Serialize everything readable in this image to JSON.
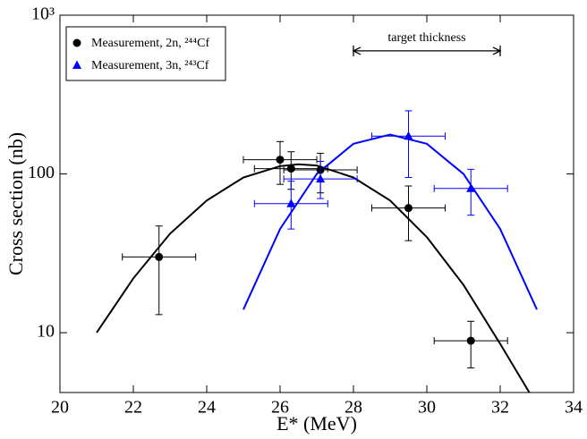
{
  "chart_data": {
    "type": "scatter",
    "xlabel": "E* (MeV)",
    "ylabel": "Cross section (nb)",
    "log_y": true,
    "xlim": [
      20,
      34
    ],
    "xticks": [
      20,
      22,
      24,
      26,
      28,
      30,
      32,
      34
    ],
    "ylim": [
      4.2,
      1000
    ],
    "yticks": [
      10,
      100,
      {
        "value": 1000,
        "label": "10³"
      }
    ],
    "legend": "upper left",
    "series": [
      {
        "name": "Measurement, 2n, ²⁴⁴Cf",
        "color": "#000000",
        "marker": "circle",
        "x": [
          22.7,
          26.0,
          26.3,
          27.1,
          29.5,
          31.2
        ],
        "values": [
          30,
          123,
          108,
          106,
          61,
          8.9
        ],
        "ylow": [
          13,
          86,
          80,
          76,
          38,
          6
        ],
        "yhigh": [
          47,
          160,
          138,
          135,
          84,
          11.8
        ],
        "xerr": [
          1,
          1,
          1,
          1,
          1,
          1
        ]
      },
      {
        "name": "Measurement, 3n, ²⁴³Cf",
        "color": "#0000ff",
        "marker": "triangle",
        "x": [
          26.3,
          27.1,
          29.5,
          31.2
        ],
        "values": [
          65,
          93,
          173,
          81
        ],
        "ylow": [
          45,
          70,
          95,
          55
        ],
        "yhigh": [
          90,
          120,
          250,
          107
        ],
        "xerr": [
          1,
          1,
          1,
          1
        ]
      }
    ],
    "fits": [
      {
        "color": "#000000",
        "x": [
          21,
          22,
          23,
          24,
          25,
          26,
          26.5,
          27,
          28,
          29,
          30,
          31,
          32,
          33
        ],
        "values": [
          10,
          22,
          42,
          68,
          95,
          112,
          115,
          113,
          95,
          68,
          40,
          20,
          8.5,
          3.5
        ]
      },
      {
        "color": "#0000ff",
        "x": [
          25,
          26,
          27,
          28,
          29,
          30,
          31,
          32,
          33
        ],
        "values": [
          14,
          45,
          100,
          155,
          177,
          155,
          100,
          45,
          14
        ]
      }
    ],
    "annotation": {
      "text": "target thickness",
      "x": [
        28,
        32
      ],
      "y": 596
    }
  }
}
